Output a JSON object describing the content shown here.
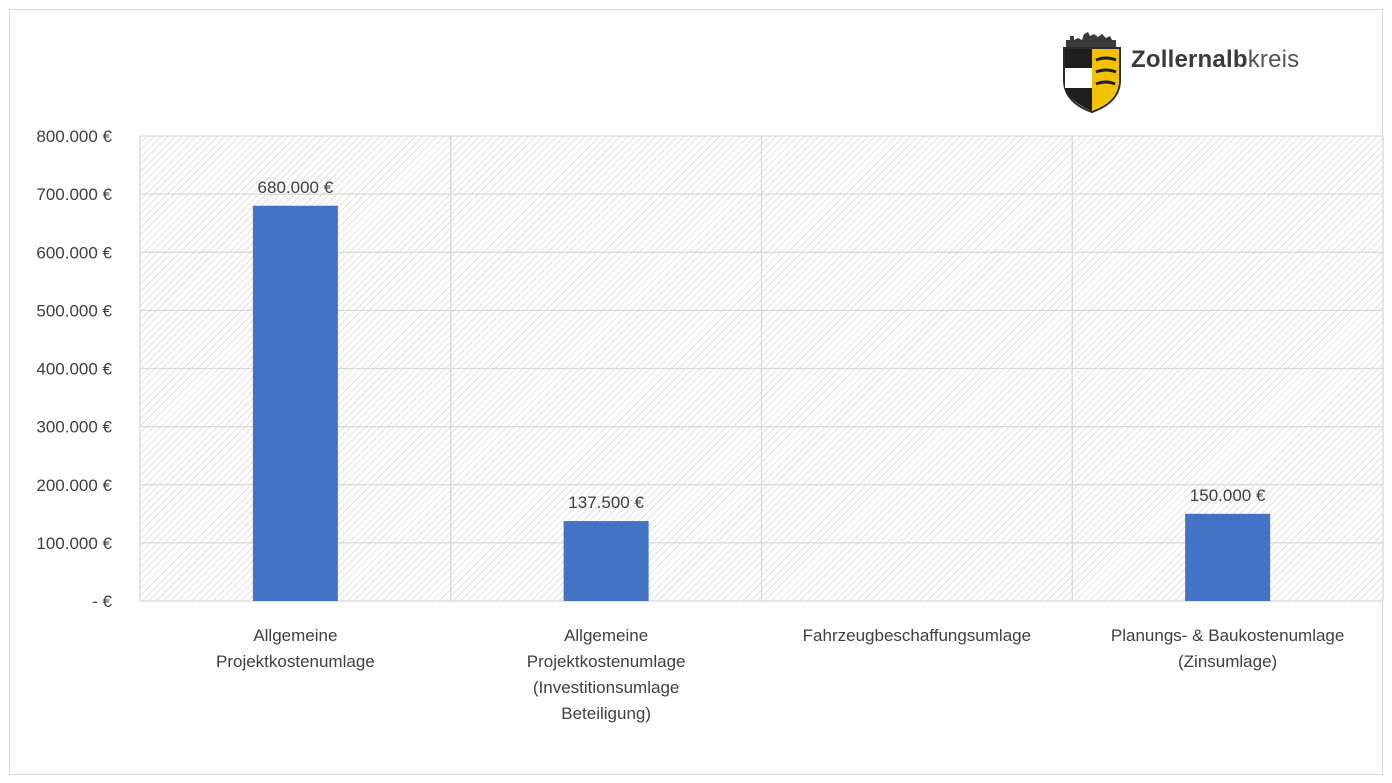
{
  "logo": {
    "text_bold": "Zollernalb",
    "text_light": "kreis",
    "icon": "coat-of-arms-icon"
  },
  "chart_data": {
    "type": "bar",
    "title": "",
    "xlabel": "",
    "ylabel": "",
    "categories": [
      [
        "Allgemeine",
        "Projektkostenumlage"
      ],
      [
        "Allgemeine",
        "Projektkostenumlage",
        "(Investitionsumlage",
        "Beteiligung)"
      ],
      [
        "Fahrzeugbeschaffungsumlage"
      ],
      [
        "Planungs- & Baukostenumlage",
        "(Zinsumlage)"
      ]
    ],
    "values": [
      680000,
      137500,
      null,
      150000
    ],
    "data_labels": [
      "680.000 €",
      "137.500 €",
      "",
      "150.000 €"
    ],
    "ylim": [
      0,
      800000
    ],
    "yticks": [
      {
        "value": 0,
        "label": "- €"
      },
      {
        "value": 100000,
        "label": "100.000 €"
      },
      {
        "value": 200000,
        "label": "200.000 €"
      },
      {
        "value": 300000,
        "label": "300.000 €"
      },
      {
        "value": 400000,
        "label": "400.000 €"
      },
      {
        "value": 500000,
        "label": "500.000 €"
      },
      {
        "value": 600000,
        "label": "600.000 €"
      },
      {
        "value": 700000,
        "label": "700.000 €"
      },
      {
        "value": 800000,
        "label": "800.000 €"
      }
    ],
    "grid": true,
    "bar_color": "#4472c4",
    "grid_color": "#d9d9d9",
    "plot_pattern": "diagonal-hatch"
  }
}
